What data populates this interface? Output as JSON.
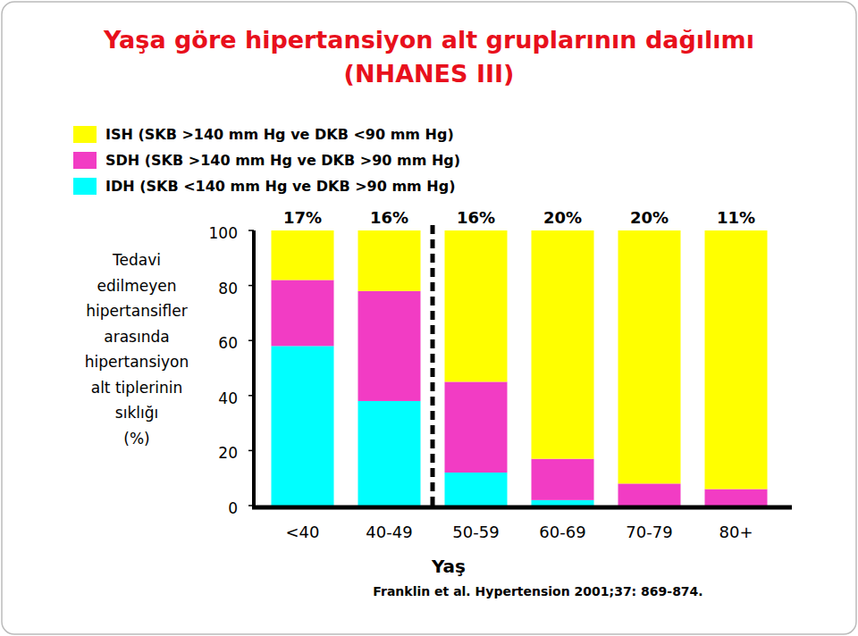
{
  "chart_data": {
    "type": "bar",
    "stacked": true,
    "title": "Yaşa göre hipertansiyon alt gruplarının dağılımı",
    "subtitle": "(NHANES III)",
    "y_label": "Tedavi\nedilmeyen\nhipertansifler\narasında\nhipertansiyon\nalt tiplerinin\nsıklığı\n(%)",
    "x_label": "Yaş",
    "source": "Franklin et al. Hypertension 2001;37: 869-874.",
    "categories": [
      "<40",
      "40-49",
      "50-59",
      "60-69",
      "70-79",
      "80+"
    ],
    "annotations": [
      "17%",
      "16%",
      "16%",
      "20%",
      "20%",
      "11%"
    ],
    "series": [
      {
        "name": "ISH (SKB >140 mm Hg ve DKB <90 mm Hg)",
        "color": "#ffff00",
        "values": [
          18,
          22,
          55,
          83,
          92,
          94
        ]
      },
      {
        "name": "SDH (SKB >140 mm Hg ve DKB >90 mm Hg)",
        "color": "#f23cc4",
        "values": [
          24,
          40,
          33,
          15,
          8,
          6
        ]
      },
      {
        "name": "IDH (SKB <140 mm Hg ve DKB >90 mm Hg)",
        "color": "#00ffff",
        "values": [
          58,
          38,
          12,
          2,
          0,
          0
        ]
      }
    ],
    "ylim": [
      0,
      100
    ],
    "yticks": [
      0,
      20,
      40,
      60,
      80,
      100
    ],
    "grid": false,
    "legend": "top-left"
  }
}
